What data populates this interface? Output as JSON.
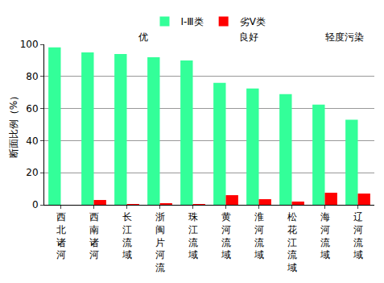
{
  "chart_data": {
    "type": "bar",
    "y_label": "断面比例（%）",
    "categories": [
      "西北诸河",
      "西南诸河",
      "长江流域",
      "浙闽片河流",
      "珠江流域",
      "黄河流域",
      "淮河流域",
      "松花江流域",
      "海河流域",
      "辽河流域"
    ],
    "series": [
      {
        "name": "Ⅰ-Ⅲ类",
        "color": "#33ff99",
        "values": [
          98.1,
          95,
          94,
          92,
          90,
          76,
          72.5,
          69,
          62.5,
          53
        ]
      },
      {
        "name": "劣Ⅴ类",
        "color": "#ff0000",
        "values": [
          0,
          3,
          0.5,
          1,
          0.5,
          6,
          3.5,
          2,
          7.5,
          7
        ]
      }
    ],
    "annotations": [
      "优",
      "良好",
      "轻度污染"
    ],
    "ylim": [
      0,
      100
    ],
    "yticks": [
      0,
      20,
      40,
      60,
      80,
      100
    ],
    "grid": true,
    "legend": "top"
  }
}
